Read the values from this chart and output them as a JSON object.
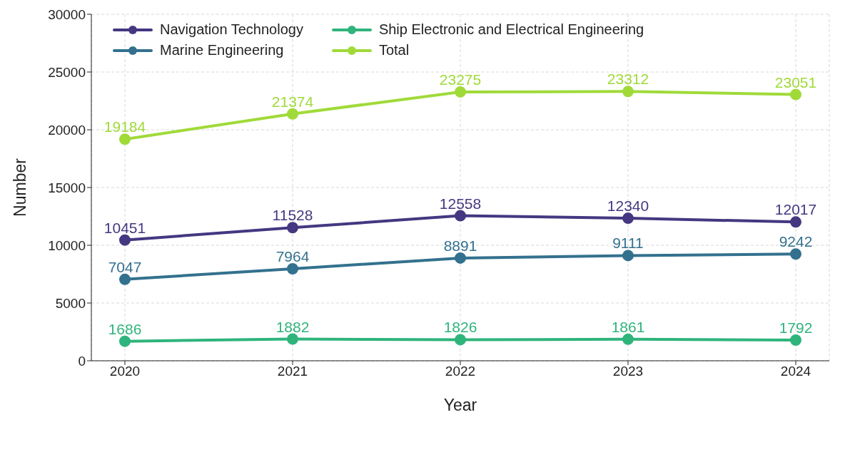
{
  "chart_data": {
    "type": "line",
    "xlabel": "Year",
    "ylabel": "Number",
    "categories": [
      "2020",
      "2021",
      "2022",
      "2023",
      "2024"
    ],
    "series": [
      {
        "name": "Navigation Technology",
        "color": "#453781",
        "values": [
          10451,
          11528,
          12558,
          12340,
          12017
        ]
      },
      {
        "name": "Marine Engineering",
        "color": "#33718e",
        "values": [
          7047,
          7964,
          8891,
          9111,
          9242
        ]
      },
      {
        "name": "Ship Electronic and Electrical Engineering",
        "color": "#2fb47c",
        "values": [
          1686,
          1882,
          1826,
          1861,
          1792
        ]
      },
      {
        "name": "Total",
        "color": "#a0da39",
        "values": [
          19184,
          21374,
          23275,
          23312,
          23051
        ]
      }
    ],
    "ylim": [
      0,
      30000
    ],
    "yticks": [
      0,
      5000,
      10000,
      15000,
      20000,
      25000,
      30000
    ],
    "grid": true,
    "legend": "top left",
    "marker": "circle",
    "line_style": "solid",
    "data_labels": true
  }
}
